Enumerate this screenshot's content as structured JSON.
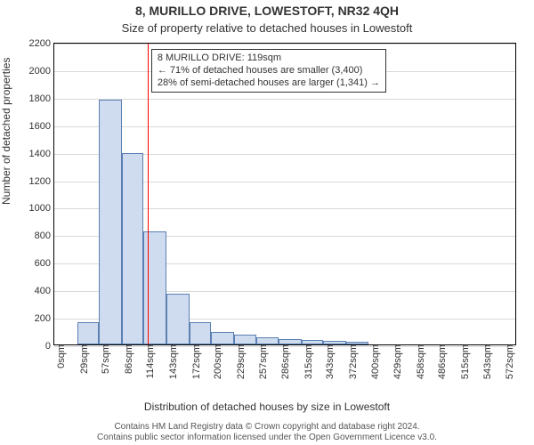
{
  "title_line1": "8, MURILLO DRIVE, LOWESTOFT, NR32 4QH",
  "title_line2": "Size of property relative to detached houses in Lowestoft",
  "title_fontsize": 14,
  "subtitle_fontsize": 13,
  "y_axis_label": "Number of detached properties",
  "x_axis_label": "Distribution of detached houses by size in Lowestoft",
  "axis_label_fontsize": 12,
  "tick_fontsize": 11,
  "text_color": "#333333",
  "chart": {
    "type": "histogram",
    "background_color": "#ffffff",
    "border_color": "#000000",
    "grid_color": "#d9d9d9",
    "bar_fill": "#cfdcef",
    "bar_border": "#5b7fb3",
    "refline_color": "#ff0000",
    "refline_value": 119,
    "ylim": [
      0,
      2200
    ],
    "ytick_step": 200,
    "x_categories": [
      "0sqm",
      "29sqm",
      "57sqm",
      "86sqm",
      "114sqm",
      "143sqm",
      "172sqm",
      "200sqm",
      "229sqm",
      "257sqm",
      "286sqm",
      "315sqm",
      "343sqm",
      "372sqm",
      "400sqm",
      "429sqm",
      "458sqm",
      "486sqm",
      "515sqm",
      "543sqm",
      "572sqm"
    ],
    "x_values": [
      0,
      29,
      57,
      86,
      114,
      143,
      172,
      200,
      229,
      257,
      286,
      315,
      343,
      372,
      400,
      429,
      458,
      486,
      515,
      543,
      572
    ],
    "x_max": 590,
    "bar_values": [
      0,
      160,
      1780,
      1390,
      820,
      370,
      165,
      88,
      70,
      50,
      40,
      30,
      25,
      20,
      0,
      0,
      0,
      0,
      0,
      0,
      0
    ],
    "bar_width_ratio": 1.0
  },
  "annotation": {
    "line1": "8 MURILLO DRIVE: 119sqm",
    "line2": "← 71% of detached houses are smaller (3,400)",
    "line3": "28% of semi-detached houses are larger (1,341) →",
    "fontsize": 11,
    "border_color": "#333333",
    "background_color": "#ffffff"
  },
  "footer": {
    "line1": "Contains HM Land Registry data © Crown copyright and database right 2024.",
    "line2": "Contains public sector information licensed under the Open Government Licence v3.0.",
    "fontsize": 10,
    "color": "#555555"
  }
}
